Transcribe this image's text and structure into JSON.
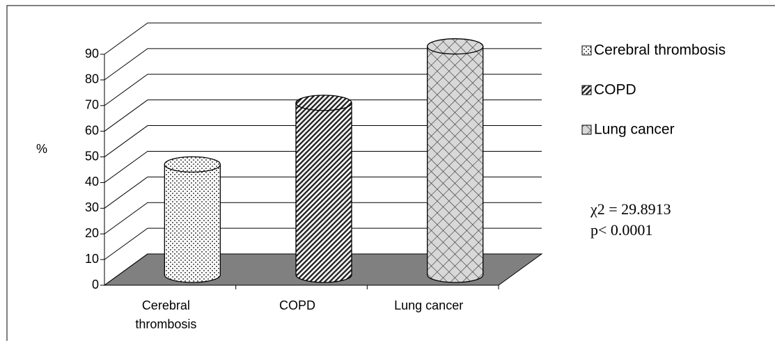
{
  "chart_data": {
    "type": "bar3d",
    "y_label": "%",
    "categories": [
      "Cerebral thrombosis",
      "COPD",
      "Lung cancer"
    ],
    "x_tick_lines": [
      [
        "Cerebral",
        "thrombosis"
      ],
      [
        "COPD"
      ],
      [
        "Lung cancer"
      ]
    ],
    "values": [
      43,
      67,
      89
    ],
    "patterns": [
      "dots",
      "stripes",
      "crosshatch"
    ],
    "ylim": [
      0,
      90
    ],
    "yticks": [
      0,
      10,
      20,
      30,
      40,
      50,
      60,
      70,
      80,
      90
    ],
    "grid": true,
    "legend": "right",
    "annotations": [
      "χ2 = 29.8913",
      "p< 0.0001"
    ]
  }
}
